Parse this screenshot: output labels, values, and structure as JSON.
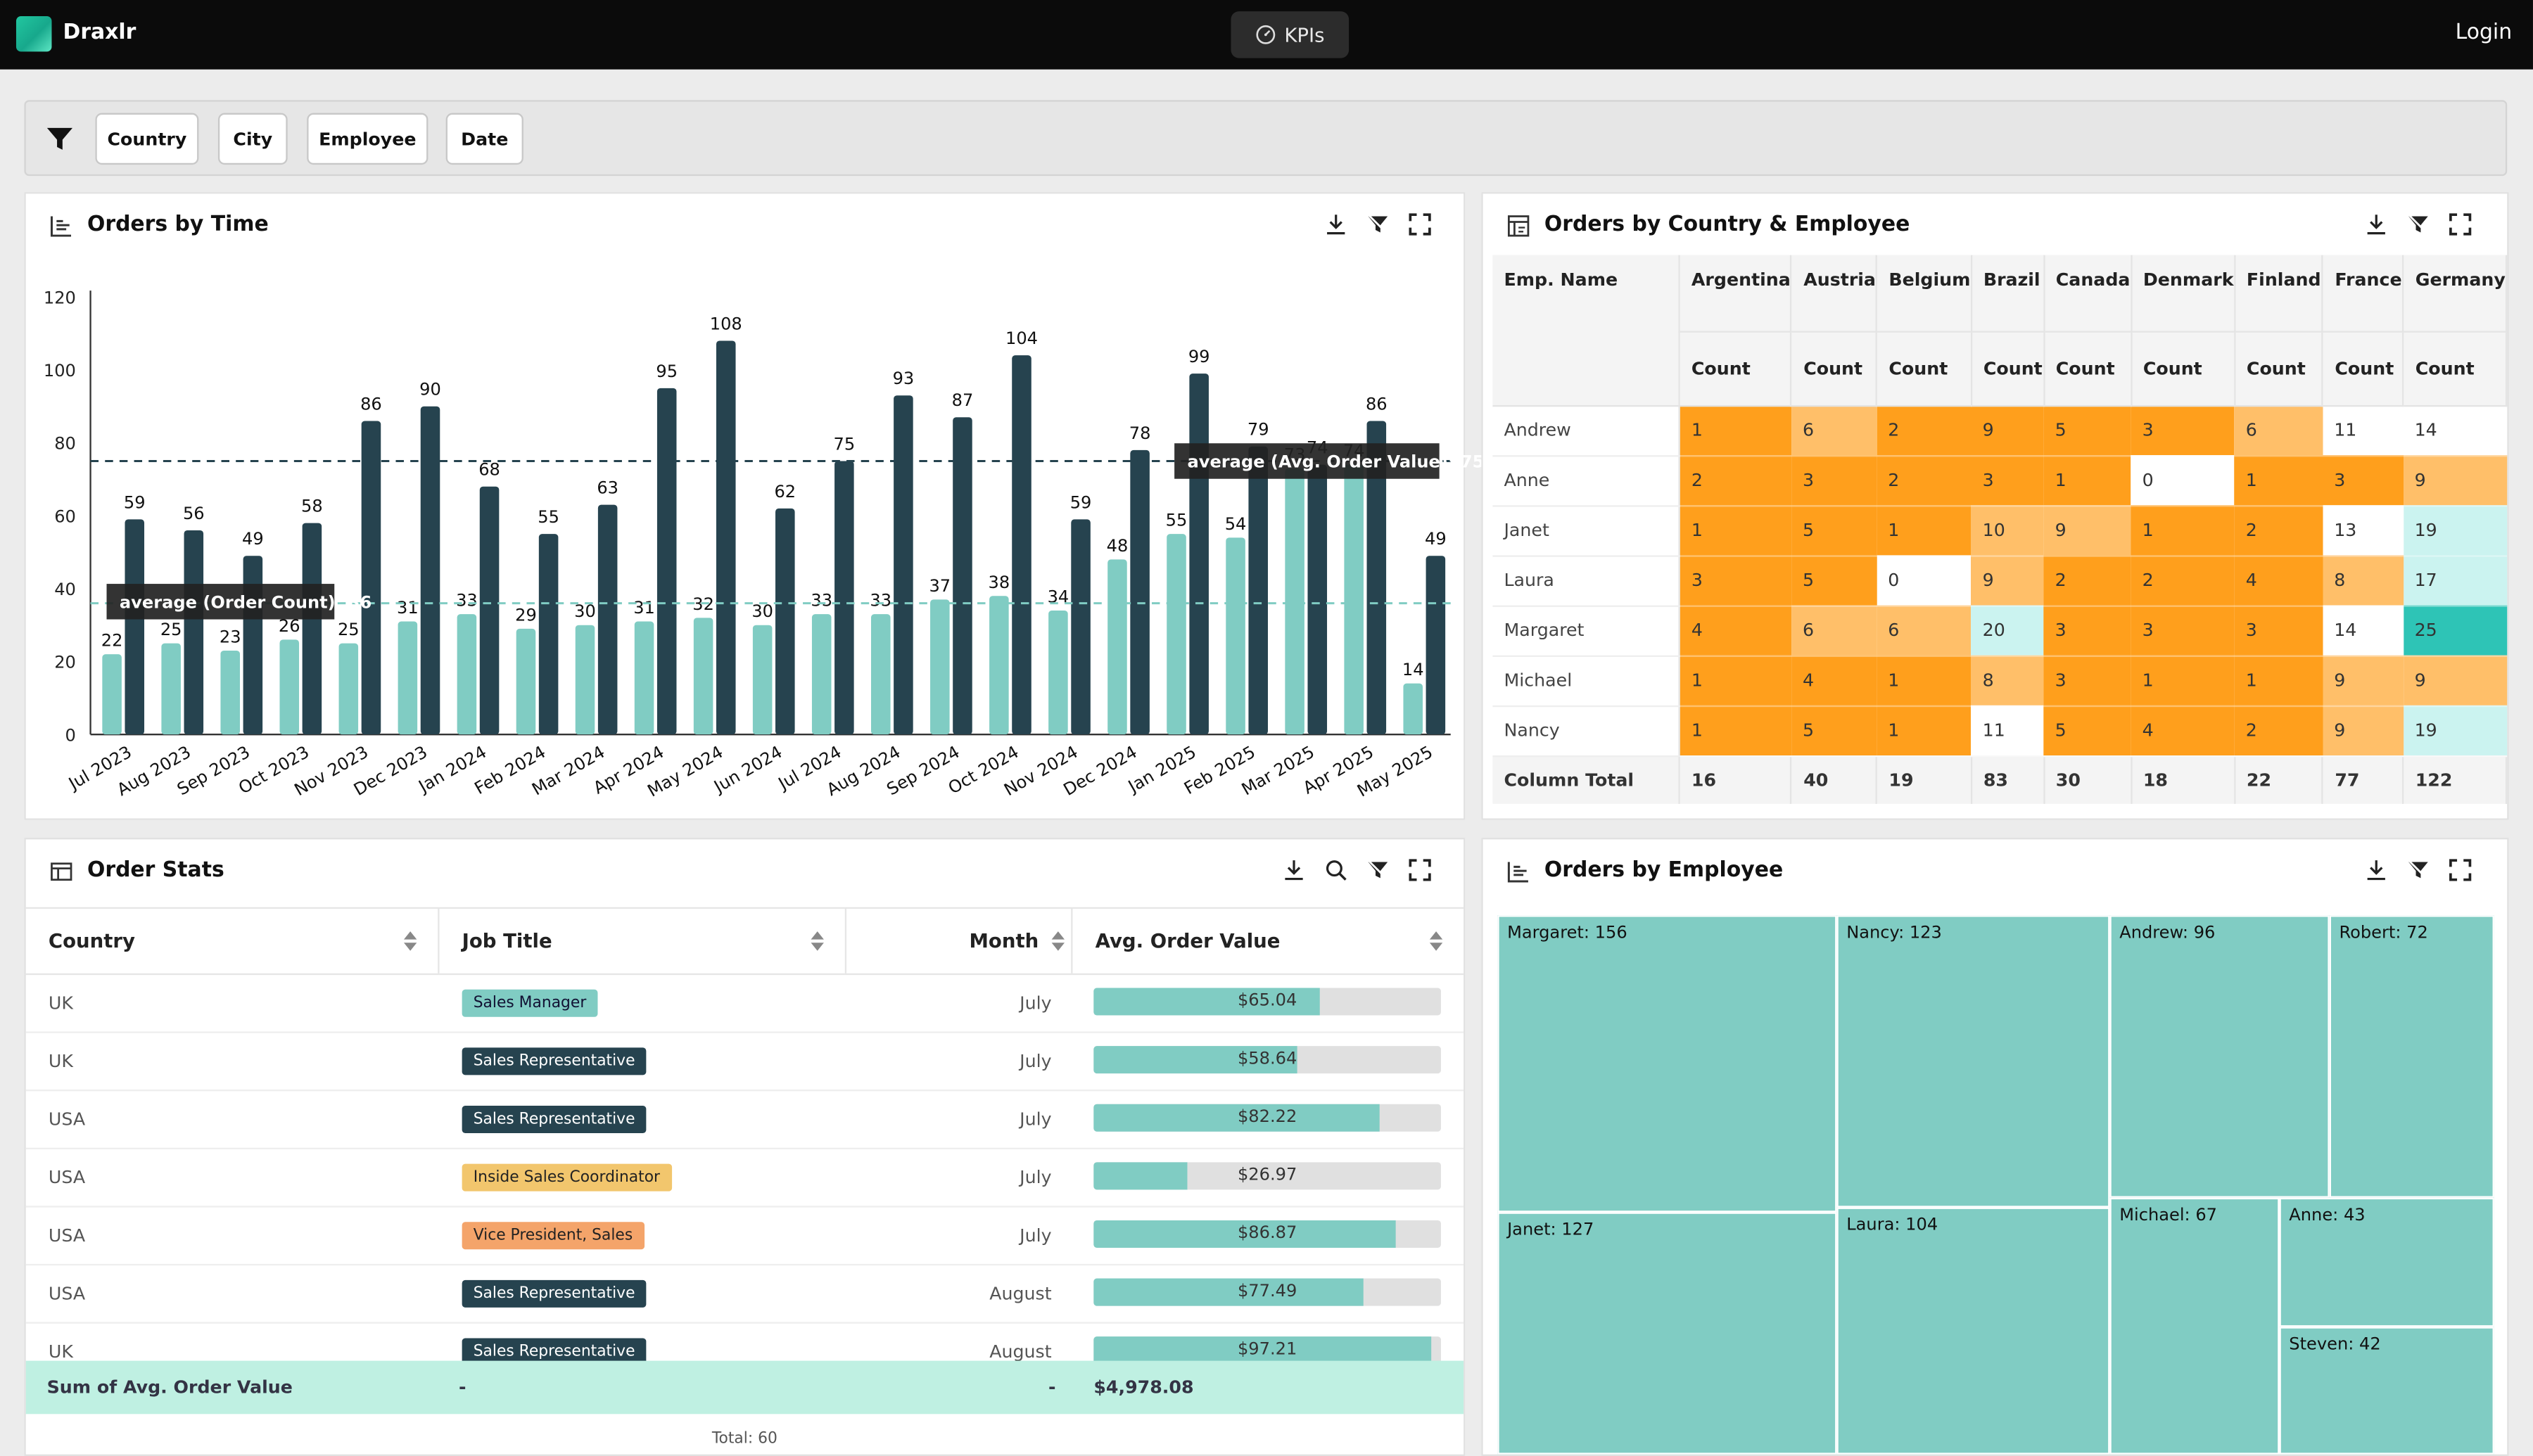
{
  "app": {
    "name": "Draxlr",
    "kpi_label": "KPIs",
    "login": "Login"
  },
  "filters": [
    "Country",
    "City",
    "Employee",
    "Date"
  ],
  "orders_by_time": {
    "title": "Orders by Time",
    "chart_data": {
      "type": "bar",
      "title": "Orders by Time",
      "categories": [
        "Jul 2023",
        "Aug 2023",
        "Sep 2023",
        "Oct 2023",
        "Nov 2023",
        "Dec 2023",
        "Jan 2024",
        "Feb 2024",
        "Mar 2024",
        "Apr 2024",
        "May 2024",
        "Jun 2024",
        "Jul 2024",
        "Aug 2024",
        "Sep 2024",
        "Oct 2024",
        "Nov 2024",
        "Dec 2024",
        "Jan 2025",
        "Feb 2025",
        "Mar 2025",
        "Apr 2025",
        "May 2025"
      ],
      "series": [
        {
          "name": "Order Count",
          "color": "#80ccc3",
          "values": [
            22,
            25,
            23,
            26,
            25,
            31,
            33,
            29,
            30,
            31,
            32,
            30,
            33,
            33,
            37,
            38,
            34,
            48,
            55,
            54,
            73,
            74,
            14
          ]
        },
        {
          "name": "Avg. Order Value",
          "color": "#26434f",
          "values": [
            59,
            56,
            49,
            58,
            86,
            90,
            68,
            55,
            63,
            95,
            108,
            62,
            75,
            93,
            87,
            104,
            59,
            78,
            99,
            79,
            74,
            86,
            49
          ]
        }
      ],
      "ylim": [
        0,
        120
      ],
      "yticks": [
        0,
        20,
        40,
        60,
        80,
        100,
        120
      ],
      "averages": [
        {
          "label": "average (Order Count): 36",
          "value": 36,
          "color": "#80ccc3"
        },
        {
          "label": "average (Avg. Order Value): 75",
          "value": 75,
          "color": "#26434f"
        }
      ]
    }
  },
  "orders_by_country": {
    "title": "Orders by Country & Employee",
    "row_header": "Emp. Name",
    "measure": "Count",
    "columns": [
      "Argentina",
      "Austria",
      "Belgium",
      "Brazil",
      "Canada",
      "Denmark",
      "Finland",
      "France",
      "Germany"
    ],
    "rows": [
      {
        "name": "Andrew",
        "values": [
          1,
          6,
          2,
          9,
          5,
          3,
          6,
          11,
          14
        ]
      },
      {
        "name": "Anne",
        "values": [
          2,
          3,
          2,
          3,
          1,
          0,
          1,
          3,
          9
        ]
      },
      {
        "name": "Janet",
        "values": [
          1,
          5,
          1,
          10,
          9,
          1,
          2,
          13,
          19
        ]
      },
      {
        "name": "Laura",
        "values": [
          3,
          5,
          0,
          9,
          2,
          2,
          4,
          8,
          17
        ]
      },
      {
        "name": "Margaret",
        "values": [
          4,
          6,
          6,
          20,
          3,
          3,
          3,
          14,
          25
        ]
      },
      {
        "name": "Michael",
        "values": [
          1,
          4,
          1,
          8,
          3,
          1,
          1,
          9,
          9
        ]
      },
      {
        "name": "Nancy",
        "values": [
          1,
          5,
          1,
          11,
          5,
          4,
          2,
          9,
          19
        ]
      }
    ],
    "total_label": "Column Total",
    "totals": [
      16,
      40,
      19,
      83,
      30,
      18,
      22,
      77,
      122
    ]
  },
  "order_stats": {
    "title": "Order Stats",
    "headers": {
      "country": "Country",
      "job": "Job Title",
      "month": "Month",
      "avg": "Avg. Order Value"
    },
    "rows": [
      {
        "country": "UK",
        "job": "Sales Manager",
        "month": "July",
        "value": "$65.04",
        "pct": 65.04
      },
      {
        "country": "UK",
        "job": "Sales Representative",
        "month": "July",
        "value": "$58.64",
        "pct": 58.64
      },
      {
        "country": "USA",
        "job": "Sales Representative",
        "month": "July",
        "value": "$82.22",
        "pct": 82.22
      },
      {
        "country": "USA",
        "job": "Inside Sales Coordinator",
        "month": "July",
        "value": "$26.97",
        "pct": 26.97
      },
      {
        "country": "USA",
        "job": "Vice President, Sales",
        "month": "July",
        "value": "$86.87",
        "pct": 86.87
      },
      {
        "country": "USA",
        "job": "Sales Representative",
        "month": "August",
        "value": "$77.49",
        "pct": 77.49
      },
      {
        "country": "UK",
        "job": "Sales Representative",
        "month": "August",
        "value": "$97.21",
        "pct": 97.21
      }
    ],
    "sum": {
      "label": "Sum of Avg. Order Value",
      "job": "-",
      "month": "-",
      "value": "$4,978.08"
    },
    "total": "Total: 60"
  },
  "orders_by_employee": {
    "title": "Orders by Employee",
    "items": [
      "Margaret: 156",
      "Nancy: 123",
      "Andrew: 96",
      "Robert: 72",
      "Janet: 127",
      "Laura: 104",
      "Michael: 67",
      "Anne: 43",
      "Steven: 42"
    ]
  },
  "colors": {
    "teal": "#80ccc3",
    "navy": "#26434f",
    "orange": "#ff9f1c",
    "light_orange": "#ffbf69",
    "mint": "#cbf3f0",
    "deep_teal": "#2ec4b6"
  }
}
